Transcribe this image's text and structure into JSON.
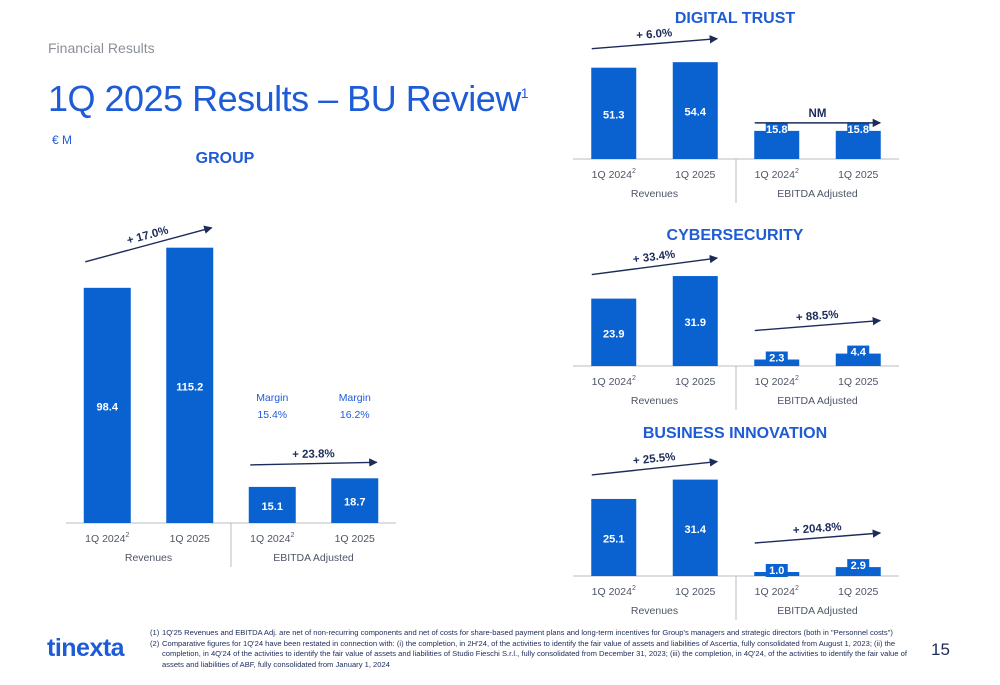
{
  "header": {
    "section": "Financial Results",
    "title": "1Q 2025 Results – BU Review",
    "title_footnote": "1",
    "unit": "€ M"
  },
  "colors": {
    "bar": "#0a62d0",
    "accent": "#1e5bd6",
    "text": "#1c2b5a",
    "axis": "#b9bcc4"
  },
  "chart_data": [
    {
      "id": "group",
      "type": "bar",
      "title": "GROUP",
      "groups": [
        {
          "label": "Revenues",
          "categories": [
            "1Q 2024",
            "1Q 2025"
          ],
          "category_footnotes": [
            "2",
            ""
          ],
          "values": [
            98.4,
            115.2
          ],
          "value_labels": [
            "98.4",
            "115.2"
          ],
          "growth": "+ 17.0%"
        },
        {
          "label": "EBITDA Adjusted",
          "categories": [
            "1Q 2024",
            "1Q 2025"
          ],
          "category_footnotes": [
            "2",
            ""
          ],
          "values": [
            15.1,
            18.7
          ],
          "value_labels": [
            "15.1",
            "18.7"
          ],
          "growth": "+ 23.8%",
          "margins": [
            {
              "label": "Margin",
              "value": "15.4%"
            },
            {
              "label": "Margin",
              "value": "16.2%"
            }
          ]
        }
      ]
    },
    {
      "id": "digital-trust",
      "type": "bar",
      "title": "DIGITAL TRUST",
      "groups": [
        {
          "label": "Revenues",
          "categories": [
            "1Q 2024",
            "1Q 2025"
          ],
          "category_footnotes": [
            "2",
            ""
          ],
          "values": [
            51.3,
            54.4
          ],
          "value_labels": [
            "51.3",
            "54.4"
          ],
          "growth": "+ 6.0%"
        },
        {
          "label": "EBITDA Adjusted",
          "categories": [
            "1Q 2024",
            "1Q 2025"
          ],
          "category_footnotes": [
            "2",
            ""
          ],
          "values": [
            15.8,
            15.8
          ],
          "value_labels": [
            "15.8",
            "15.8"
          ],
          "growth": "NM"
        }
      ]
    },
    {
      "id": "cybersecurity",
      "type": "bar",
      "title": "CYBERSECURITY",
      "groups": [
        {
          "label": "Revenues",
          "categories": [
            "1Q 2024",
            "1Q 2025"
          ],
          "category_footnotes": [
            "2",
            ""
          ],
          "values": [
            23.9,
            31.9
          ],
          "value_labels": [
            "23.9",
            "31.9"
          ],
          "growth": "+ 33.4%"
        },
        {
          "label": "EBITDA Adjusted",
          "categories": [
            "1Q 2024",
            "1Q 2025"
          ],
          "category_footnotes": [
            "2",
            ""
          ],
          "values": [
            2.3,
            4.4
          ],
          "value_labels": [
            "2.3",
            "4.4"
          ],
          "growth": "+ 88.5%"
        }
      ]
    },
    {
      "id": "business-innovation",
      "type": "bar",
      "title": "BUSINESS INNOVATION",
      "groups": [
        {
          "label": "Revenues",
          "categories": [
            "1Q 2024",
            "1Q 2025"
          ],
          "category_footnotes": [
            "2",
            ""
          ],
          "values": [
            25.1,
            31.4
          ],
          "value_labels": [
            "25.1",
            "31.4"
          ],
          "growth": "+ 25.5%"
        },
        {
          "label": "EBITDA Adjusted",
          "categories": [
            "1Q 2024",
            "1Q 2025"
          ],
          "category_footnotes": [
            "2",
            ""
          ],
          "values": [
            1.0,
            2.9
          ],
          "value_labels": [
            "1.0",
            "2.9"
          ],
          "growth": "+ 204.8%"
        }
      ]
    }
  ],
  "footnotes": [
    {
      "num": "(1)",
      "text": "1Q'25 Revenues and EBITDA Adj. are net of non-recurring components and net of costs for share-based payment plans and long-term incentives for Group's managers and strategic directors (both in \"Personnel costs\")"
    },
    {
      "num": "(2)",
      "text": "Comparative figures for 1Q'24 have been restated in connection with: (i) the completion, in 2H'24, of the activities to identify the fair value of assets and liabilities of Ascertia, fully consolidated from August 1, 2023; (ii) the completion, in 4Q'24 of the activities to identify the fair value of assets and liabilities of Studio Fieschi S.r.l., fully consolidated from December 31, 2023; (iii) the completion, in 4Q'24, of the activities to identify the fair value of assets and liabilities of ABF, fully consolidated from January 1, 2024"
    }
  ],
  "footer": {
    "logo": "tinexta",
    "page_number": "15"
  }
}
